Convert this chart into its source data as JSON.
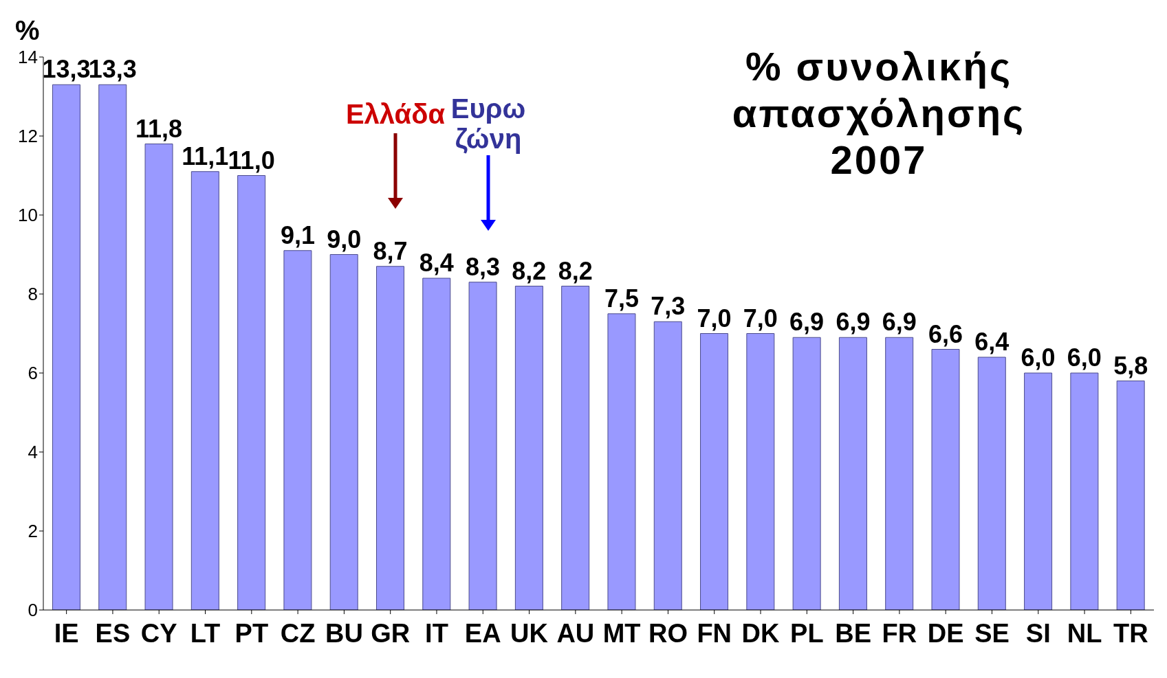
{
  "chart_data": {
    "type": "bar",
    "title": "% συνολικής απασχόλησης 2007",
    "ylabel": "%",
    "categories": [
      "IE",
      "ES",
      "CY",
      "LT",
      "PT",
      "CZ",
      "BU",
      "GR",
      "IT",
      "EA",
      "UK",
      "AU",
      "MT",
      "RO",
      "FN",
      "DK",
      "PL",
      "BE",
      "FR",
      "DE",
      "SE",
      "SI",
      "NL",
      "TR"
    ],
    "values": [
      13.3,
      13.3,
      11.8,
      11.1,
      11.0,
      9.1,
      9.0,
      8.7,
      8.4,
      8.3,
      8.2,
      8.2,
      7.5,
      7.3,
      7.0,
      7.0,
      6.9,
      6.9,
      6.9,
      6.6,
      6.4,
      6.0,
      6.0,
      5.8
    ],
    "value_labels": [
      "13,3",
      "13,3",
      "11,8",
      "11,1",
      "11,0",
      "9,1",
      "9,0",
      "8,7",
      "8,4",
      "8,3",
      "8,2",
      "8,2",
      "7,5",
      "7,3",
      "7,0",
      "7,0",
      "6,9",
      "6,9",
      "6,9",
      "6,6",
      "6,4",
      "6,0",
      "6,0",
      "5,8"
    ],
    "color": "#9999ff",
    "ylim": [
      0,
      14
    ],
    "yticks": [
      0,
      2,
      4,
      6,
      8,
      10,
      12,
      14
    ],
    "grid": false,
    "legend": false,
    "annotations": [
      "Ελλάδα",
      "Ευρω ζώνη"
    ]
  }
}
